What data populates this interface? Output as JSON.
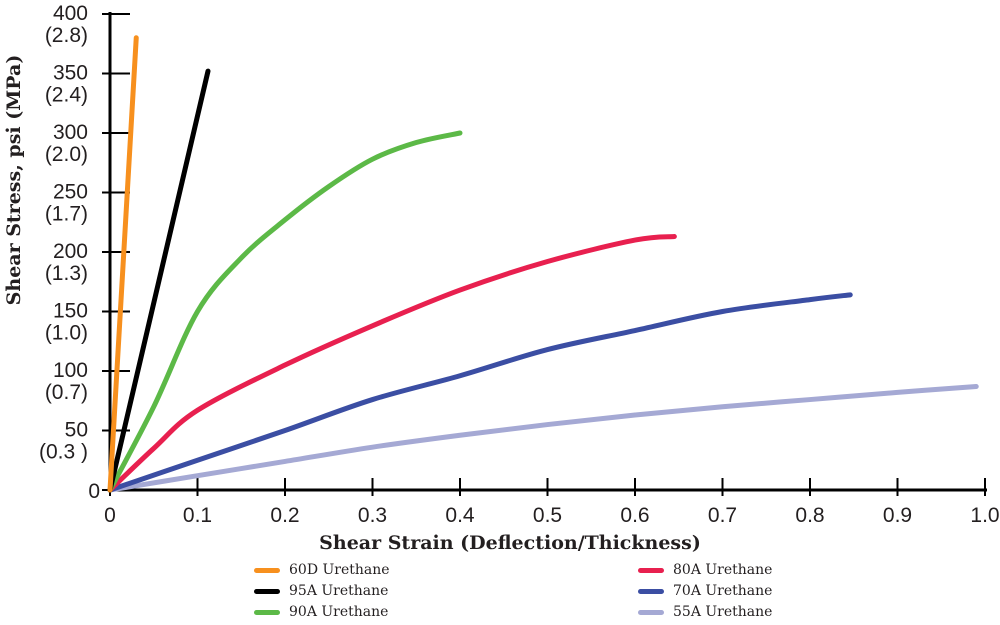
{
  "chart_data": {
    "type": "line",
    "xlabel": "Shear Strain (Deflection/Thickness)",
    "ylabel": "Shear Stress, psi (MPa)",
    "xlim": [
      0,
      1.0
    ],
    "ylim": [
      0,
      400
    ],
    "grid": false,
    "legend_placement": "bottom",
    "x_ticks": [
      "0",
      "0.1",
      "0.2",
      "0.3",
      "0.4",
      "0.5",
      "0.6",
      "0.7",
      "0.8",
      "0.9",
      "1.0"
    ],
    "y_ticks": [
      {
        "value": 0,
        "psi": "0",
        "mpa": ""
      },
      {
        "value": 50,
        "psi": "50",
        "mpa": "(0.3 )"
      },
      {
        "value": 100,
        "psi": "100",
        "mpa": "(0.7)"
      },
      {
        "value": 150,
        "psi": "150",
        "mpa": "(1.0)"
      },
      {
        "value": 200,
        "psi": "200",
        "mpa": "(1.3)"
      },
      {
        "value": 250,
        "psi": "250",
        "mpa": "(1.7)"
      },
      {
        "value": 300,
        "psi": "300",
        "mpa": "(2.0)"
      },
      {
        "value": 350,
        "psi": "350",
        "mpa": "(2.4)"
      },
      {
        "value": 400,
        "psi": "400",
        "mpa": "(2.8)"
      }
    ],
    "series": [
      {
        "name": "60D Urethane",
        "color": "#f7901e",
        "points": [
          [
            0,
            0
          ],
          [
            0.03,
            380
          ]
        ]
      },
      {
        "name": "95A Urethane",
        "color": "#000000",
        "points": [
          [
            0,
            0
          ],
          [
            0.112,
            352
          ]
        ]
      },
      {
        "name": "90A Urethane",
        "color": "#5cb947",
        "points": [
          [
            0,
            0
          ],
          [
            0.05,
            70
          ],
          [
            0.1,
            150
          ],
          [
            0.15,
            195
          ],
          [
            0.2,
            227
          ],
          [
            0.25,
            255
          ],
          [
            0.3,
            278
          ],
          [
            0.35,
            292
          ],
          [
            0.4,
            300
          ]
        ]
      },
      {
        "name": "80A Urethane",
        "color": "#e8204f",
        "points": [
          [
            0,
            0
          ],
          [
            0.05,
            35
          ],
          [
            0.1,
            67
          ],
          [
            0.2,
            105
          ],
          [
            0.3,
            138
          ],
          [
            0.4,
            168
          ],
          [
            0.5,
            192
          ],
          [
            0.6,
            210
          ],
          [
            0.645,
            213
          ]
        ]
      },
      {
        "name": "70A Urethane",
        "color": "#3b4ea3",
        "points": [
          [
            0,
            0
          ],
          [
            0.1,
            25
          ],
          [
            0.2,
            50
          ],
          [
            0.3,
            76
          ],
          [
            0.4,
            96
          ],
          [
            0.5,
            118
          ],
          [
            0.6,
            134
          ],
          [
            0.7,
            150
          ],
          [
            0.8,
            160
          ],
          [
            0.846,
            164
          ]
        ]
      },
      {
        "name": "55A Urethane",
        "color": "#a5a9d4",
        "points": [
          [
            0,
            0
          ],
          [
            0.1,
            12
          ],
          [
            0.2,
            24
          ],
          [
            0.3,
            36
          ],
          [
            0.4,
            46
          ],
          [
            0.5,
            55
          ],
          [
            0.6,
            63
          ],
          [
            0.7,
            70
          ],
          [
            0.8,
            76
          ],
          [
            0.9,
            82
          ],
          [
            0.99,
            87
          ]
        ]
      }
    ]
  }
}
